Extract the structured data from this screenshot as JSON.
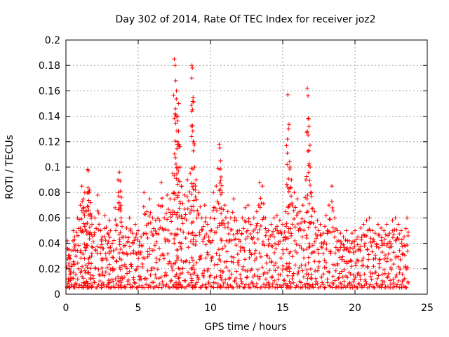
{
  "chart_data": {
    "type": "scatter",
    "title": "Day 302 of 2014, Rate Of TEC Index for receiver joz2",
    "xlabel": "GPS time / hours",
    "ylabel": "ROTI / TECUs",
    "xlim": [
      0,
      25
    ],
    "ylim": [
      0,
      0.2
    ],
    "xticks": [
      "0",
      "5",
      "10",
      "15",
      "20",
      "25"
    ],
    "yticks": [
      "0",
      "0.02",
      "0.04",
      "0.06",
      "0.08",
      "0.1",
      "0.12",
      "0.14",
      "0.16",
      "0.18",
      "0.2"
    ],
    "grid": true,
    "marker": "+",
    "series_color": "#ff0000",
    "series": [
      {
        "name": "ROTI",
        "x": [
          0.1,
          0.2,
          0.3,
          0.5,
          0.6,
          0.8,
          1.0,
          1.1,
          1.2,
          1.3,
          1.4,
          1.5,
          1.55,
          1.6,
          1.7,
          1.8,
          2.0,
          2.2,
          2.4,
          2.5,
          2.7,
          2.9,
          3.0,
          3.2,
          3.4,
          3.6,
          3.7,
          3.75,
          3.8,
          4.0,
          4.2,
          4.4,
          4.6,
          4.8,
          5.0,
          5.2,
          5.4,
          5.6,
          5.8,
          6.0,
          6.2,
          6.4,
          6.6,
          6.8,
          7.0,
          7.2,
          7.4,
          7.5,
          7.55,
          7.6,
          7.65,
          7.7,
          7.75,
          7.8,
          7.9,
          8.0,
          8.2,
          8.4,
          8.6,
          8.7,
          8.72,
          8.75,
          8.8,
          8.9,
          9.0,
          9.2,
          9.4,
          9.6,
          9.8,
          10.0,
          10.2,
          10.4,
          10.6,
          10.65,
          10.7,
          10.8,
          11.0,
          11.2,
          11.4,
          11.6,
          11.8,
          12.0,
          12.2,
          12.4,
          12.6,
          12.8,
          13.0,
          13.2,
          13.4,
          13.6,
          13.8,
          14.0,
          14.2,
          14.4,
          14.6,
          14.8,
          15.0,
          15.2,
          15.3,
          15.35,
          15.4,
          15.5,
          15.6,
          15.8,
          16.0,
          16.2,
          16.4,
          16.6,
          16.7,
          16.75,
          16.8,
          16.9,
          17.0,
          17.2,
          17.4,
          17.6,
          17.8,
          18.0,
          18.2,
          18.4,
          18.6,
          18.8,
          19.0,
          19.2,
          19.4,
          19.6,
          19.8,
          20.0,
          20.2,
          20.4,
          20.6,
          20.8,
          21.0,
          21.2,
          21.4,
          21.6,
          21.8,
          22.0,
          22.2,
          22.4,
          22.6,
          22.8,
          23.0,
          23.2,
          23.4,
          23.6
        ],
        "y": [
          0.042,
          0.035,
          0.028,
          0.05,
          0.045,
          0.06,
          0.07,
          0.085,
          0.075,
          0.08,
          0.065,
          0.098,
          0.097,
          0.08,
          0.072,
          0.055,
          0.06,
          0.078,
          0.05,
          0.045,
          0.062,
          0.048,
          0.058,
          0.04,
          0.068,
          0.09,
          0.096,
          0.089,
          0.07,
          0.045,
          0.052,
          0.06,
          0.048,
          0.055,
          0.05,
          0.045,
          0.08,
          0.065,
          0.075,
          0.06,
          0.058,
          0.07,
          0.088,
          0.06,
          0.078,
          0.075,
          0.095,
          0.185,
          0.18,
          0.168,
          0.16,
          0.12,
          0.14,
          0.15,
          0.1,
          0.085,
          0.078,
          0.09,
          0.095,
          0.17,
          0.18,
          0.178,
          0.155,
          0.1,
          0.09,
          0.08,
          0.06,
          0.07,
          0.055,
          0.06,
          0.08,
          0.085,
          0.118,
          0.115,
          0.105,
          0.08,
          0.07,
          0.065,
          0.06,
          0.075,
          0.058,
          0.05,
          0.06,
          0.068,
          0.07,
          0.055,
          0.06,
          0.065,
          0.088,
          0.085,
          0.06,
          0.05,
          0.055,
          0.06,
          0.062,
          0.058,
          0.055,
          0.065,
          0.102,
          0.157,
          0.13,
          0.1,
          0.09,
          0.08,
          0.075,
          0.065,
          0.07,
          0.09,
          0.162,
          0.156,
          0.138,
          0.1,
          0.08,
          0.065,
          0.058,
          0.055,
          0.048,
          0.062,
          0.07,
          0.085,
          0.06,
          0.05,
          0.048,
          0.045,
          0.05,
          0.042,
          0.048,
          0.05,
          0.045,
          0.052,
          0.055,
          0.058,
          0.06,
          0.05,
          0.048,
          0.055,
          0.052,
          0.05,
          0.055,
          0.048,
          0.058,
          0.06,
          0.055,
          0.05,
          0.045,
          0.06
        ]
      }
    ]
  }
}
